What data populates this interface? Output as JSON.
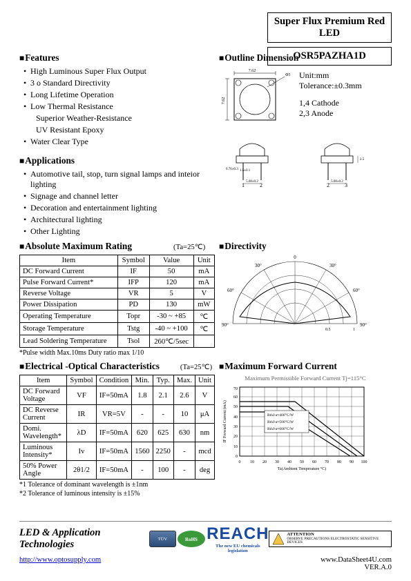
{
  "header": {
    "title": "Super Flux Premium Red LED",
    "part_number": "OSR5PAZHA1D"
  },
  "features": {
    "title": "Features",
    "items": [
      "High Luminous Super Flux Output",
      "3 o Standard Directivity",
      "Long Lifetime Operation",
      "Low Thermal Resistance",
      "Superior Weather-Resistance",
      "UV Resistant Epoxy",
      "Water Clear Type"
    ]
  },
  "outline": {
    "title": "Outline Dimension",
    "unit_label": "Unit:mm",
    "tolerance_label": "Tolerance:±0.3mm",
    "pin_label1": "1,4 Cathode",
    "pin_label2": "2,3 Anode",
    "top_width": "7.62",
    "top_height": "7.62",
    "pin_nums": [
      "1",
      "2",
      "3"
    ],
    "side_height": "2.5",
    "lead_gap": "5.08±0.2",
    "lead_len": "1.5±0.1",
    "lead_offset": "0.76±0.3",
    "lens_dia": "Φ5"
  },
  "applications": {
    "title": "Applications",
    "items": [
      "Automotive tail, stop, turn signal lamps and inteior lighting",
      "Signage and channel letter",
      "Decoration and entertainment lighting",
      "Architectural lighting",
      "Other Lighting"
    ]
  },
  "abs_max": {
    "title": "Absolute Maximum Rating",
    "cond": "(Ta=25℃)",
    "headers": [
      "Item",
      "Symbol",
      "Value",
      "Unit"
    ],
    "rows": [
      [
        "DC Forward Current",
        "IF",
        "50",
        "mA"
      ],
      [
        "Pulse Forward Current*",
        "IFP",
        "120",
        "mA"
      ],
      [
        "Reverse Voltage",
        "VR",
        "5",
        "V"
      ],
      [
        "Power Dissipation",
        "PD",
        "130",
        "mW"
      ],
      [
        "Operating Temperature",
        "Topr",
        "-30 ~ +85",
        "℃"
      ],
      [
        "Storage Temperature",
        "Tstg",
        "-40 ~ +100",
        "℃"
      ],
      [
        "Lead Soldering Temperature",
        "Tsol",
        "260℃/5sec",
        ""
      ]
    ],
    "footnote": "*Pulse width Max.10ms Duty ratio max 1/10"
  },
  "directivity": {
    "title": "Directivity",
    "angles": [
      "0",
      "30°",
      "30°",
      "60°",
      "60°",
      "90°",
      "90°"
    ],
    "scale": [
      "0.5",
      "1"
    ]
  },
  "elec_opt": {
    "title": "Electrical -Optical Characteristics",
    "cond": "(Ta=25℃)",
    "headers": [
      "Item",
      "Symbol",
      "Condition",
      "Min.",
      "Typ.",
      "Max.",
      "Unit"
    ],
    "rows": [
      [
        "DC Forward Voltage",
        "VF",
        "IF=50mA",
        "1.8",
        "2.1",
        "2.6",
        "V"
      ],
      [
        "DC Reverse Current",
        "IR",
        "VR=5V",
        "-",
        "-",
        "10",
        "μA"
      ],
      [
        "Domi. Wavelength*",
        "λD",
        "IF=50mA",
        "620",
        "625",
        "630",
        "nm"
      ],
      [
        "Luminous Intensity*",
        "Iv",
        "IF=50mA",
        "1560",
        "2250",
        "-",
        "mcd"
      ],
      [
        "50% Power Angle",
        "2θ1/2",
        "IF=50mA",
        "-",
        "100",
        "-",
        "deg"
      ]
    ],
    "footnote1": "*1 Tolerance of dominant wavelength is ±1nm",
    "footnote2": "*2 Tolerance of luminous intensity is ±15%"
  },
  "max_fwd": {
    "title": "Maximum Forward Current",
    "caption": "Maximum Permissible Forward Current Tj=115°C",
    "xlabel": "Ta(Ambient Temperature °C)",
    "ylabel": "IF Forward Current (mA)",
    "xticks": [
      "0",
      "10",
      "20",
      "30",
      "40",
      "50",
      "60",
      "70",
      "80",
      "90",
      "100"
    ],
    "yticks": [
      "0",
      "10",
      "20",
      "30",
      "40",
      "50",
      "60",
      "70"
    ],
    "legend": [
      "RthJ-a≈400°C/W",
      "RthJ-a≈500°C/W",
      "RthJ-a≈600°C/W"
    ]
  },
  "footer": {
    "company": "LED & Application Technologies",
    "url": "http://www.optosupply.com",
    "url2": "www.DataSheet4U.com",
    "version": "VER.A.0",
    "reach": "REACH",
    "reach_sub": "The new EU chemicals legislation",
    "esd": "ATTENTION",
    "esd_sub": "OBSERVE PRECAUTIONS ELECTROSTATIC SENSITIVE DEVICES"
  }
}
